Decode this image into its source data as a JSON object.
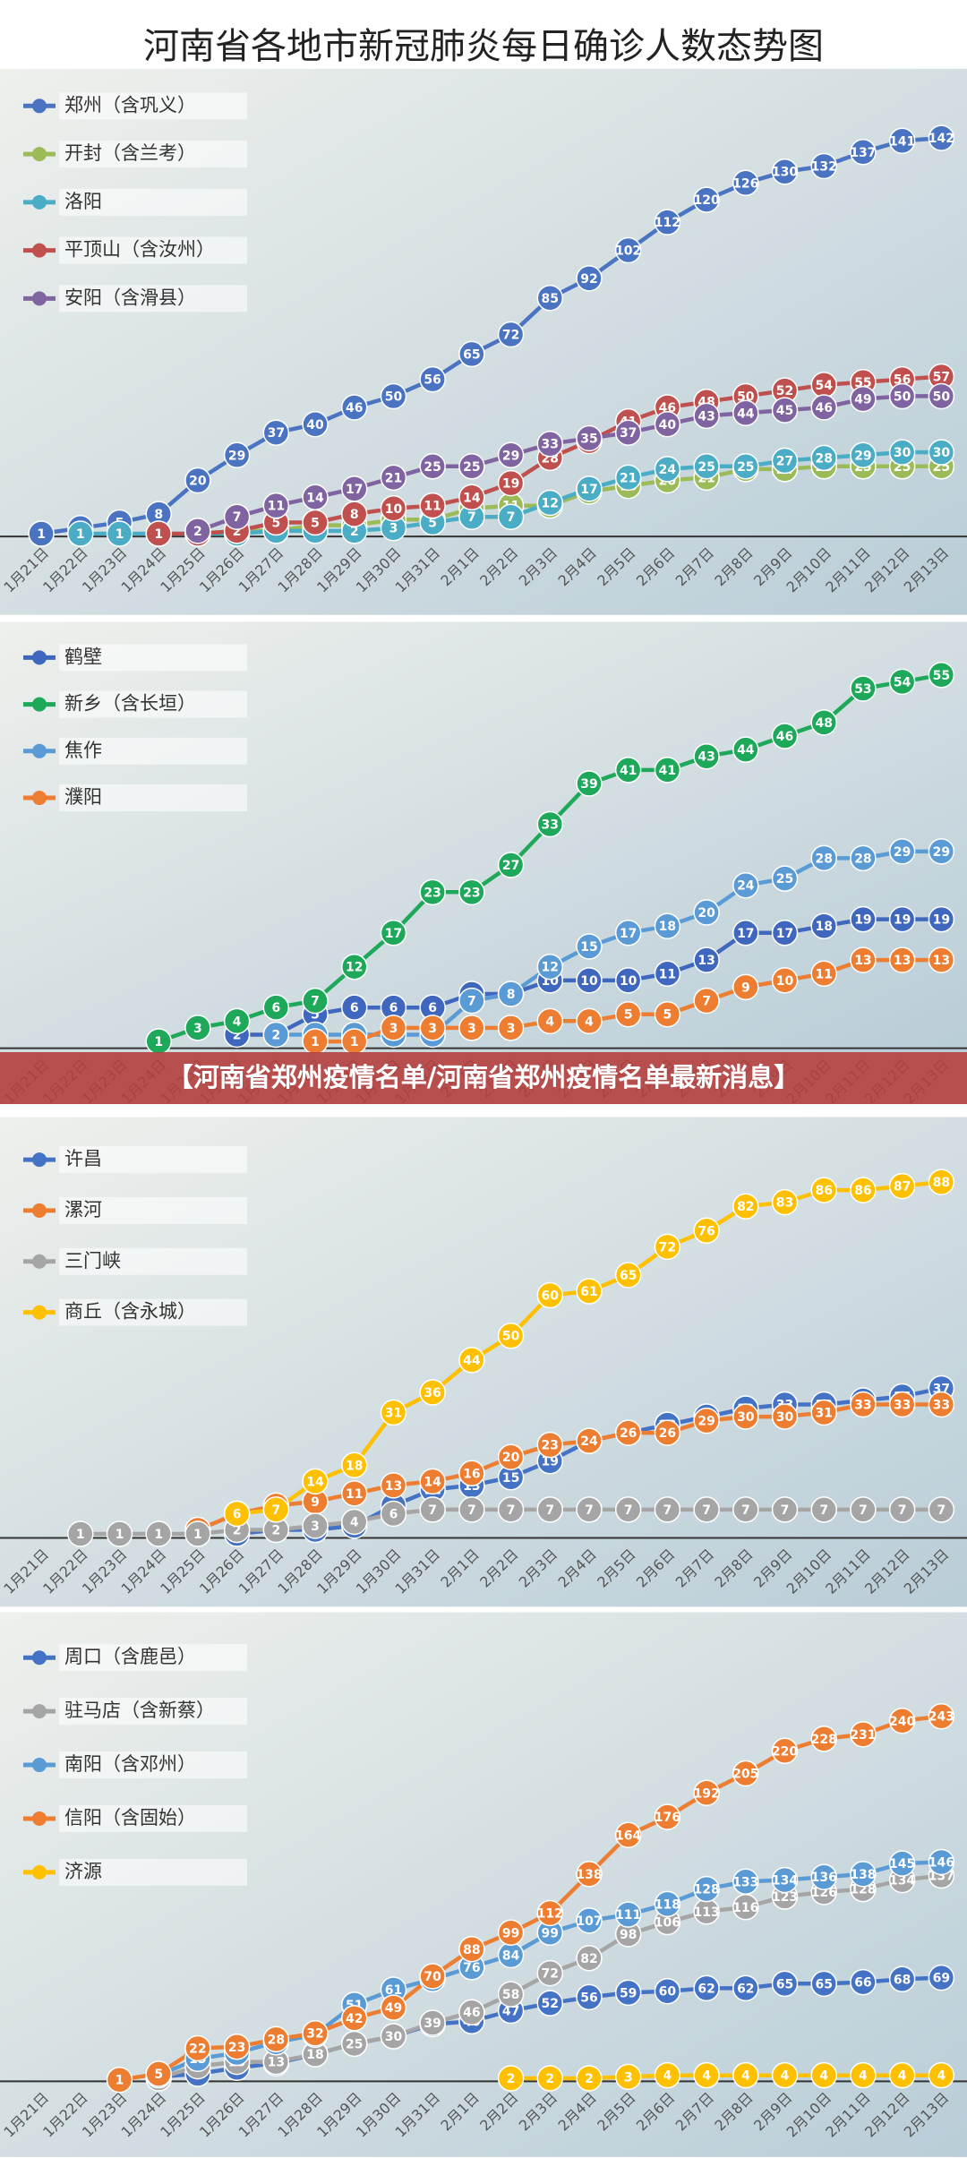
{
  "page_title": "河南省各地市新冠肺炎每日确诊人数态势图",
  "banner": "【河南省郑州疫情名单/河南省郑州疫情名单最新消息】",
  "chart_data": [
    {
      "type": "line",
      "ylim": [
        0,
        150
      ],
      "categories": [
        "1月21日",
        "1月22日",
        "1月23日",
        "1月24日",
        "1月25日",
        "1月26日",
        "1月27日",
        "1月28日",
        "1月29日",
        "1月30日",
        "1月31日",
        "2月1日",
        "2月2日",
        "2月3日",
        "2月4日",
        "2月5日",
        "2月6日",
        "2月7日",
        "2月8日",
        "2月9日",
        "2月10日",
        "2月11日",
        "2月12日",
        "2月13日"
      ],
      "series": [
        {
          "name": "郑州（含巩义）",
          "color": "#4a74c2",
          "values": [
            1,
            3,
            5,
            8,
            20,
            29,
            37,
            40,
            46,
            50,
            56,
            65,
            72,
            85,
            92,
            102,
            112,
            120,
            126,
            130,
            132,
            137,
            141,
            142
          ]
        },
        {
          "name": "开封（含兰考）",
          "color": "#9bbb59",
          "values": [
            null,
            null,
            null,
            null,
            1,
            2,
            2,
            4,
            4,
            6,
            6,
            10,
            11,
            11,
            16,
            18,
            20,
            21,
            24,
            24,
            25,
            25,
            25,
            25
          ]
        },
        {
          "name": "洛阳",
          "color": "#4bacc6",
          "values": [
            null,
            1,
            1,
            1,
            1,
            1,
            2,
            2,
            2,
            3,
            5,
            7,
            7,
            12,
            17,
            21,
            24,
            25,
            25,
            27,
            28,
            29,
            30,
            30
          ]
        },
        {
          "name": "平顶山（含汝州）",
          "color": "#c0504d",
          "values": [
            null,
            null,
            null,
            1,
            1,
            2,
            5,
            5,
            8,
            10,
            11,
            14,
            19,
            28,
            34,
            41,
            46,
            48,
            50,
            52,
            54,
            55,
            56,
            57
          ]
        },
        {
          "name": "安阳（含滑县）",
          "color": "#8064a2",
          "values": [
            null,
            null,
            null,
            null,
            2,
            7,
            11,
            14,
            17,
            21,
            25,
            25,
            29,
            33,
            35,
            37,
            40,
            43,
            44,
            45,
            46,
            49,
            50,
            50
          ]
        }
      ]
    },
    {
      "type": "line",
      "ylim": [
        0,
        60
      ],
      "categories": [
        "1月21日",
        "1月22日",
        "1月23日",
        "1月24日",
        "1月25日",
        "1月26日",
        "1月27日",
        "1月28日",
        "1月29日",
        "1月30日",
        "1月31日",
        "2月1日",
        "2月2日",
        "2月3日",
        "2月4日",
        "2月5日",
        "2月6日",
        "2月7日",
        "2月8日",
        "2月9日",
        "2月10日",
        "2月11日",
        "2月12日",
        "2月13日"
      ],
      "series": [
        {
          "name": "鹤壁",
          "color": "#3f67bd",
          "values": [
            null,
            null,
            null,
            null,
            null,
            2,
            2,
            5,
            6,
            6,
            6,
            8,
            8,
            10,
            10,
            10,
            11,
            13,
            17,
            17,
            18,
            19,
            19,
            19
          ]
        },
        {
          "name": "新乡（含长垣）",
          "color": "#1ea85a",
          "values": [
            null,
            null,
            null,
            1,
            3,
            4,
            6,
            7,
            12,
            17,
            23,
            23,
            27,
            33,
            39,
            41,
            41,
            43,
            44,
            46,
            48,
            53,
            54,
            55
          ]
        },
        {
          "name": "焦作",
          "color": "#5b9bd5",
          "values": [
            null,
            null,
            null,
            null,
            null,
            null,
            2,
            2,
            2,
            2,
            2,
            7,
            8,
            12,
            15,
            17,
            18,
            20,
            24,
            25,
            28,
            28,
            29,
            29
          ]
        },
        {
          "name": "濮阳",
          "color": "#ed7d31",
          "values": [
            null,
            null,
            null,
            null,
            null,
            null,
            null,
            1,
            1,
            3,
            3,
            3,
            3,
            4,
            4,
            5,
            5,
            7,
            9,
            10,
            11,
            13,
            13,
            13
          ]
        }
      ]
    },
    {
      "type": "line",
      "ylim": [
        0,
        100
      ],
      "categories": [
        "1月21日",
        "1月22日",
        "1月23日",
        "1月24日",
        "1月25日",
        "1月26日",
        "1月27日",
        "1月28日",
        "1月29日",
        "1月30日",
        "1月31日",
        "2月1日",
        "2月2日",
        "2月3日",
        "2月4日",
        "2月5日",
        "2月6日",
        "2月7日",
        "2月8日",
        "2月9日",
        "2月10日",
        "2月11日",
        "2月12日",
        "2月13日"
      ],
      "series": [
        {
          "name": "许昌",
          "color": "#4472c4",
          "values": [
            null,
            null,
            null,
            null,
            null,
            1,
            2,
            2,
            3,
            8,
            12,
            13,
            15,
            19,
            24,
            26,
            28,
            30,
            32,
            33,
            33,
            34,
            35,
            37
          ]
        },
        {
          "name": "漯河",
          "color": "#ed7d31",
          "values": [
            null,
            null,
            null,
            null,
            2,
            6,
            8,
            9,
            11,
            13,
            14,
            16,
            20,
            23,
            24,
            26,
            26,
            29,
            30,
            30,
            31,
            33,
            33,
            33
          ]
        },
        {
          "name": "三门峡",
          "color": "#a5a5a5",
          "values": [
            null,
            1,
            1,
            1,
            1,
            2,
            2,
            3,
            4,
            6,
            7,
            7,
            7,
            7,
            7,
            7,
            7,
            7,
            7,
            7,
            7,
            7,
            7,
            7
          ]
        },
        {
          "name": "商丘（含永城）",
          "color": "#ffc000",
          "values": [
            null,
            null,
            null,
            null,
            null,
            6,
            7,
            14,
            18,
            31,
            36,
            44,
            50,
            60,
            61,
            65,
            72,
            76,
            82,
            83,
            86,
            86,
            87,
            88
          ]
        }
      ]
    },
    {
      "type": "line",
      "ylim": [
        0,
        250
      ],
      "categories": [
        "1月21日",
        "1月22日",
        "1月23日",
        "1月24日",
        "1月25日",
        "1月26日",
        "1月27日",
        "1月28日",
        "1月29日",
        "1月30日",
        "1月31日",
        "2月1日",
        "2月2日",
        "2月3日",
        "2月4日",
        "2月5日",
        "2月6日",
        "2月7日",
        "2月8日",
        "2月9日",
        "2月10日",
        "2月11日",
        "2月12日",
        "2月13日"
      ],
      "series": [
        {
          "name": "周口（含鹿邑）",
          "color": "#4472c4",
          "values": [
            null,
            null,
            null,
            3,
            5,
            9,
            12,
            18,
            25,
            30,
            38,
            40,
            47,
            52,
            56,
            59,
            60,
            62,
            62,
            65,
            65,
            66,
            68,
            69
          ]
        },
        {
          "name": "驻马店（含新蔡）",
          "color": "#a5a5a5",
          "values": [
            null,
            null,
            null,
            2,
            10,
            13,
            13,
            18,
            25,
            30,
            39,
            46,
            58,
            72,
            82,
            98,
            106,
            113,
            116,
            123,
            126,
            128,
            134,
            137
          ]
        },
        {
          "name": "南阳（含邓州）",
          "color": "#5b9bd5",
          "values": [
            null,
            null,
            null,
            4,
            15,
            19,
            26,
            31,
            51,
            61,
            68,
            76,
            84,
            99,
            107,
            111,
            118,
            128,
            133,
            134,
            136,
            138,
            145,
            146
          ]
        },
        {
          "name": "信阳（含固始）",
          "color": "#ed7d31",
          "values": [
            null,
            null,
            1,
            5,
            22,
            23,
            28,
            32,
            42,
            49,
            70,
            88,
            99,
            112,
            138,
            164,
            176,
            192,
            205,
            220,
            228,
            231,
            240,
            243
          ]
        },
        {
          "name": "济源",
          "color": "#ffc000",
          "values": [
            null,
            null,
            null,
            null,
            null,
            null,
            null,
            null,
            null,
            null,
            null,
            null,
            2,
            2,
            2,
            3,
            4,
            4,
            4,
            4,
            4,
            4,
            4,
            4
          ]
        }
      ]
    }
  ]
}
